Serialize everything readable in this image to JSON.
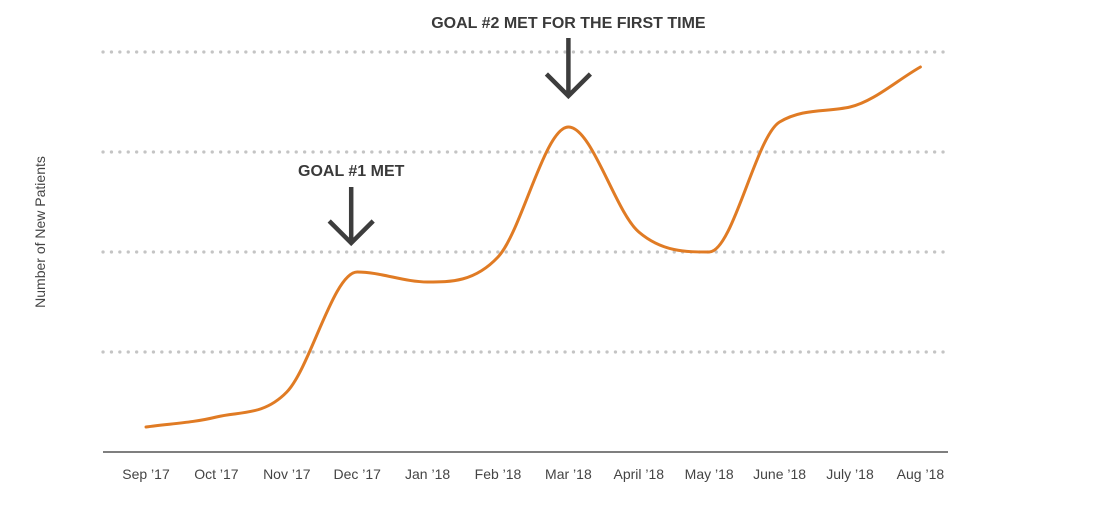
{
  "chart_data": {
    "type": "line",
    "title": "",
    "xlabel": "",
    "ylabel": "Number of New Patients",
    "categories": [
      "Sep ’17",
      "Oct ’17",
      "Nov ’17",
      "Dec ’17",
      "Jan ’18",
      "Feb ’18",
      "Mar ’18",
      "April ’18",
      "May ’18",
      "June ’18",
      "July ’18",
      "Aug ’18"
    ],
    "series": [
      {
        "values": [
          0.25,
          0.35,
          0.6,
          1.8,
          1.7,
          1.95,
          3.25,
          2.2,
          2.0,
          3.3,
          3.45,
          3.85
        ]
      }
    ],
    "ylim": [
      0,
      4
    ],
    "y_ticks_labeled": false,
    "grid": "horizontal dotted",
    "annotations": [
      {
        "text": "GOAL #1 MET",
        "category_index": 3
      },
      {
        "text": "GOAL #2 MET FOR THE FIRST TIME",
        "category_index": 6
      }
    ],
    "colors": {
      "line": "#e07b24",
      "grid": "#c4c4c4",
      "axis": "#333333",
      "arrow": "#3d3d3d"
    }
  }
}
